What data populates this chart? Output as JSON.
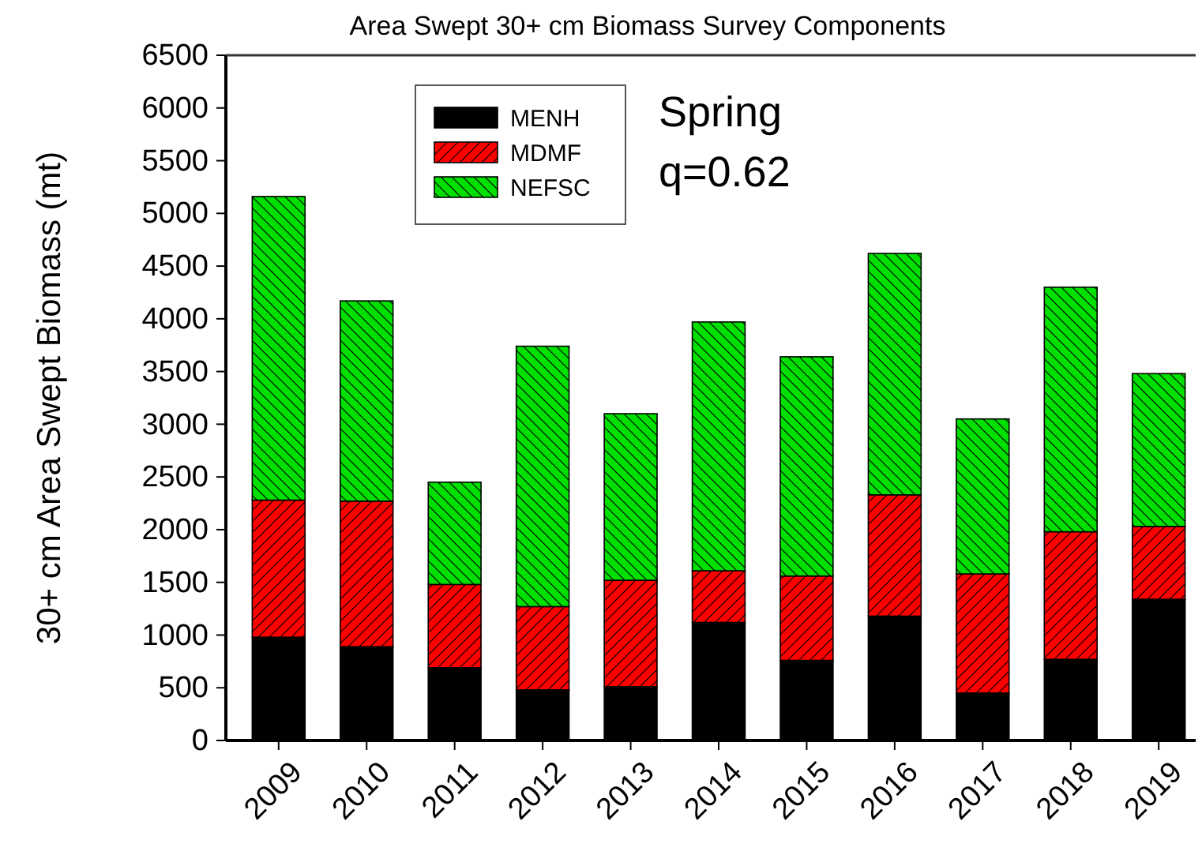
{
  "chart_data": {
    "type": "bar",
    "title": "Area Swept 30+ cm Biomass Survey Components",
    "ylabel": "30+ cm Area Swept Biomass (mt)",
    "categories": [
      "2009",
      "2010",
      "2011",
      "2012",
      "2013",
      "2014",
      "2015",
      "2016",
      "2017",
      "2018",
      "2019"
    ],
    "stacked": true,
    "series": [
      {
        "name": "MENH",
        "color": "#000000",
        "values": [
          980,
          890,
          690,
          480,
          510,
          1120,
          760,
          1180,
          450,
          770,
          1340
        ]
      },
      {
        "name": "MDMF",
        "color": "#ff0000",
        "values": [
          1300,
          1380,
          790,
          790,
          1010,
          490,
          800,
          1150,
          1130,
          1210,
          690
        ]
      },
      {
        "name": "NEFSC",
        "color": "#00e000",
        "values": [
          2880,
          1900,
          970,
          2470,
          1580,
          2360,
          2080,
          2290,
          1470,
          2320,
          1450
        ]
      }
    ],
    "ylim": [
      0,
      6500
    ],
    "yticks": [
      0,
      500,
      1000,
      1500,
      2000,
      2500,
      3000,
      3500,
      4000,
      4500,
      5000,
      5500,
      6000,
      6500
    ],
    "legend": "top left",
    "annotations": [
      "Spring",
      "q=0.62"
    ]
  }
}
